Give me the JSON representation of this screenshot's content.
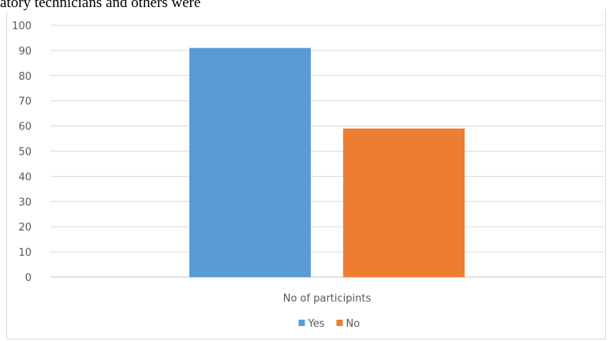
{
  "document": {
    "text_fragment": "atory technicians and others were"
  },
  "chart_data": {
    "type": "bar",
    "categories": [
      "No of participints"
    ],
    "series": [
      {
        "name": "Yes",
        "values": [
          91
        ]
      },
      {
        "name": "No",
        "values": [
          59
        ]
      }
    ],
    "colors": {
      "Yes": "#5B9BD5",
      "No": "#ED7D31"
    },
    "xlabel": "",
    "ylabel": "",
    "ylim": [
      0,
      100
    ],
    "yticks": [
      "0",
      "10",
      "20",
      "30",
      "40",
      "50",
      "60",
      "70",
      "80",
      "90",
      "100"
    ],
    "grid": true,
    "legend_position": "bottom"
  }
}
